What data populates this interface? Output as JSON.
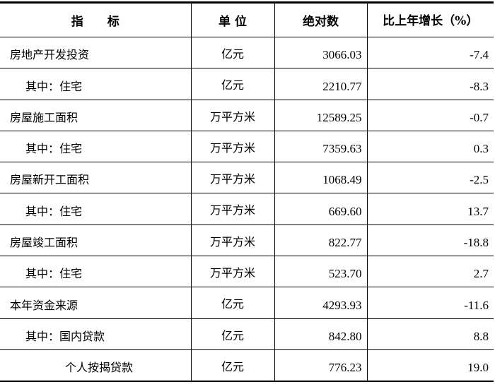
{
  "headers": {
    "indicator": "指　　标",
    "unit": "单 位",
    "absolute": "绝对数",
    "growth": "比上年增长（%）"
  },
  "rows": [
    {
      "name": "房地产开发投资",
      "level": 0,
      "unit": "亿元",
      "value": "3066.03",
      "growth": "-7.4"
    },
    {
      "name": "其中：住宅",
      "level": 1,
      "unit": "亿元",
      "value": "2210.77",
      "growth": "-8.3"
    },
    {
      "name": "房屋施工面积",
      "level": 0,
      "unit": "万平方米",
      "value": "12589.25",
      "growth": "-0.7"
    },
    {
      "name": "其中：住宅",
      "level": 1,
      "unit": "万平方米",
      "value": "7359.63",
      "growth": "0.3"
    },
    {
      "name": "房屋新开工面积",
      "level": 0,
      "unit": "万平方米",
      "value": "1068.49",
      "growth": "-2.5"
    },
    {
      "name": "其中：住宅",
      "level": 1,
      "unit": "万平方米",
      "value": "669.60",
      "growth": "13.7"
    },
    {
      "name": "房屋竣工面积",
      "level": 0,
      "unit": "万平方米",
      "value": "822.77",
      "growth": "-18.8"
    },
    {
      "name": "其中：住宅",
      "level": 1,
      "unit": "万平方米",
      "value": "523.70",
      "growth": "2.7"
    },
    {
      "name": "本年资金来源",
      "level": 0,
      "unit": "亿元",
      "value": "4293.93",
      "growth": "-11.6"
    },
    {
      "name": "其中：国内贷款",
      "level": 1,
      "unit": "亿元",
      "value": "842.80",
      "growth": "8.8"
    },
    {
      "name": "个人按揭贷款",
      "level": 2,
      "unit": "亿元",
      "value": "776.23",
      "growth": "19.0"
    }
  ]
}
